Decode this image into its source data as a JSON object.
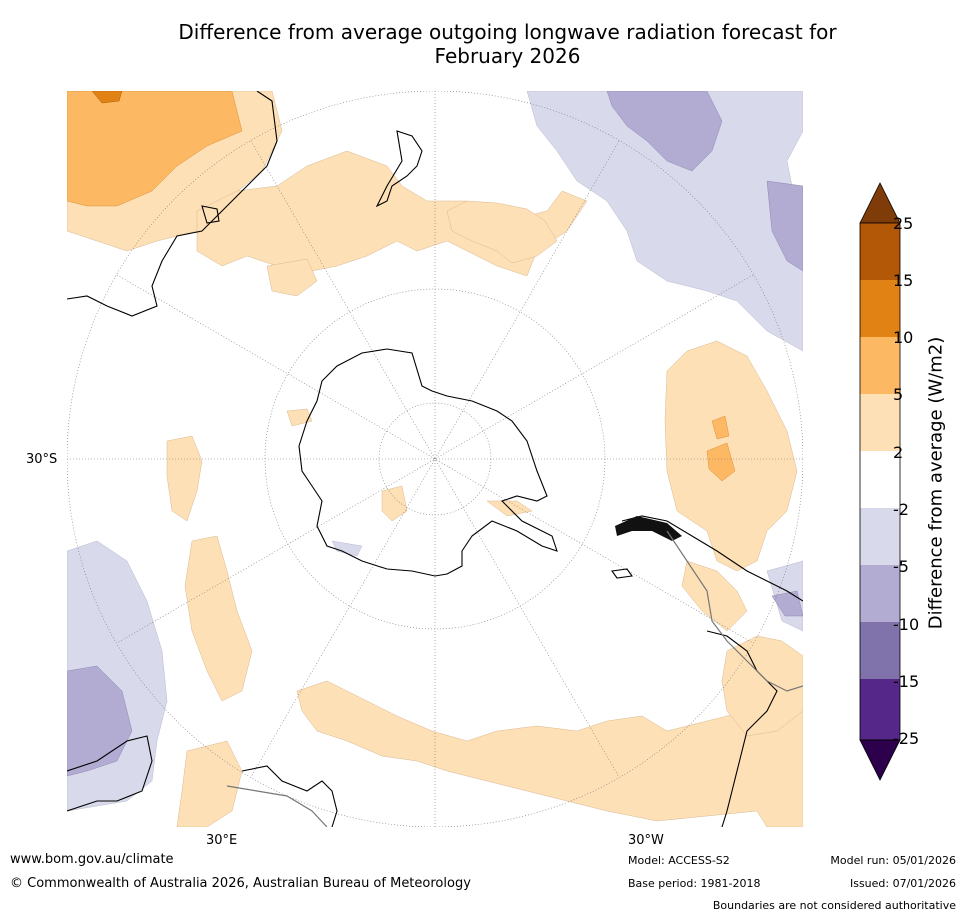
{
  "title": {
    "line1": "Difference from average outgoing longwave radiation forecast for",
    "line2": "February 2026"
  },
  "axes": {
    "lat_label": "30°S",
    "lon_labels": [
      "30°E",
      "30°W"
    ]
  },
  "legend": {
    "label": "Difference from average (W/m2)",
    "ticks": [
      "25",
      "15",
      "10",
      "5",
      "2",
      "-2",
      "-5",
      "-10",
      "-15",
      "-25"
    ],
    "bins": [
      {
        "range": "> 25",
        "color": "#7f3b08"
      },
      {
        "range": "15 to 25",
        "color": "#b35806"
      },
      {
        "range": "10 to 15",
        "color": "#e08214"
      },
      {
        "range": "5 to 10",
        "color": "#fdb863"
      },
      {
        "range": "2 to 5",
        "color": "#fee0b6"
      },
      {
        "range": "-2 to 2",
        "color": "#ffffff"
      },
      {
        "range": "-5 to -2",
        "color": "#d8daeb"
      },
      {
        "range": "-10 to -5",
        "color": "#b2abd2"
      },
      {
        "range": "-15 to -10",
        "color": "#8073ac"
      },
      {
        "range": "-25 to -15",
        "color": "#542788"
      },
      {
        "range": "< -25",
        "color": "#2d004b"
      }
    ]
  },
  "footer": {
    "website": "www.bom.gov.au/climate",
    "copyright": "© Commonwealth of Australia 2026, Australian Bureau of Meteorology",
    "model": "Model: ACCESS-S2",
    "base_period": "Base period: 1981-2018",
    "model_run": "Model run: 05/01/2026",
    "issued": "Issued: 07/01/2026",
    "disclaimer": "Boundaries are not considered authoritative"
  }
}
